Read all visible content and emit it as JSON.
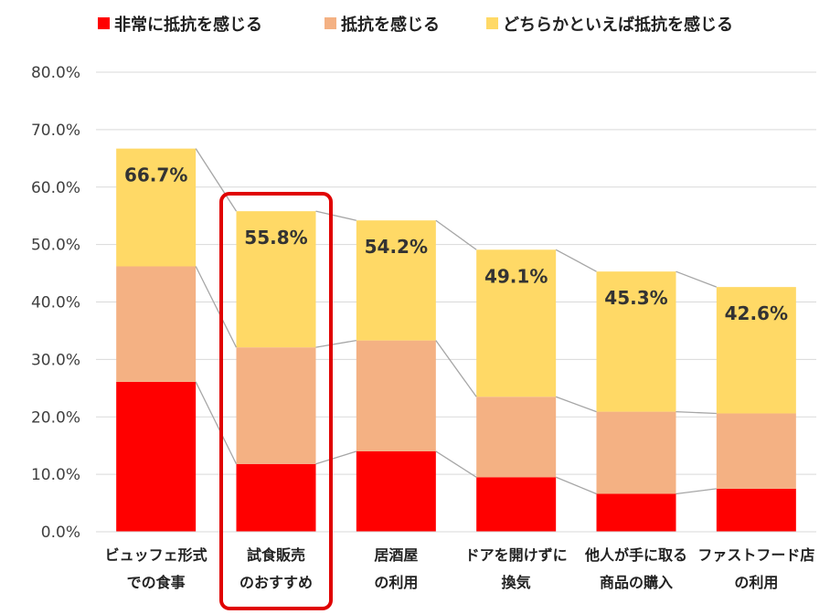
{
  "chart_data": {
    "type": "bar",
    "stacked": true,
    "title": "",
    "xlabel": "",
    "ylabel": "",
    "ylim": [
      0,
      80
    ],
    "y_ticks": [
      "0.0%",
      "10.0%",
      "20.0%",
      "30.0%",
      "40.0%",
      "50.0%",
      "60.0%",
      "70.0%",
      "80.0%"
    ],
    "grid": "horizontal",
    "legend_position": "top",
    "series_lines": true,
    "highlight": {
      "category_index": 1,
      "color": "#e00000"
    },
    "categories": [
      [
        "ビュッフェ形式",
        "での食事"
      ],
      [
        "試食販売",
        "のおすすめ"
      ],
      [
        "居酒屋",
        "の利用"
      ],
      [
        "ドアを開けずに",
        "換気"
      ],
      [
        "他人が手に取る",
        "商品の購入"
      ],
      [
        "ファストフード店",
        "の利用"
      ]
    ],
    "series": [
      {
        "name": "非常に抵抗を感じる",
        "color": "#ff0000",
        "values": [
          26.1,
          11.8,
          14.0,
          9.5,
          6.6,
          7.5
        ]
      },
      {
        "name": "抵抗を感じる",
        "color": "#f4b183",
        "values": [
          20.1,
          20.3,
          19.3,
          14.0,
          14.3,
          13.1
        ]
      },
      {
        "name": "どちらかといえば抵抗を感じる",
        "color": "#ffd966",
        "values": [
          20.5,
          23.7,
          20.9,
          25.6,
          24.4,
          22.0
        ]
      }
    ],
    "totals": [
      66.7,
      55.8,
      54.2,
      49.1,
      45.3,
      42.6
    ],
    "total_labels": [
      "66.7%",
      "55.8%",
      "54.2%",
      "49.1%",
      "45.3%",
      "42.6%"
    ]
  }
}
